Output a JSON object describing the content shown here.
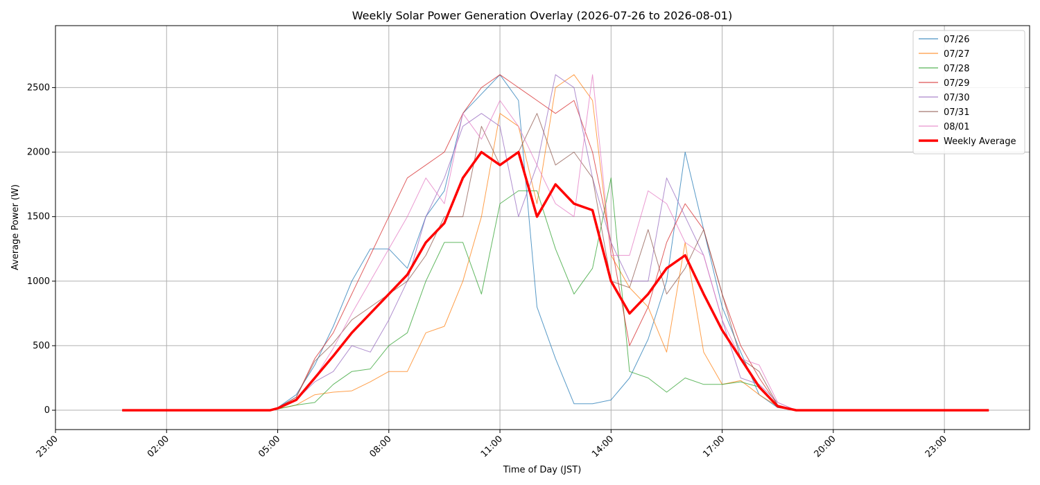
{
  "chart_data": {
    "type": "line",
    "title": "Weekly Solar Power Generation Overlay (2026-07-26 to 2026-08-01)",
    "xlabel": "Time of Day (JST)",
    "ylabel": "Average Power (W)",
    "xlim": [
      -1.0,
      25.3
    ],
    "ylim": [
      -150,
      2980
    ],
    "xticks": [
      -1,
      2,
      5,
      8,
      11,
      14,
      17,
      20,
      23
    ],
    "xtick_labels": [
      "23:00",
      "02:00",
      "05:00",
      "08:00",
      "11:00",
      "14:00",
      "17:00",
      "20:00",
      "23:00"
    ],
    "yticks": [
      0,
      500,
      1000,
      1500,
      2000,
      2500
    ],
    "ytick_labels": [
      "0",
      "500",
      "1000",
      "1500",
      "2000",
      "2500"
    ],
    "grid": true,
    "legend_position": "top-right",
    "x": [
      5.0,
      5.5,
      6.0,
      6.5,
      7.0,
      7.5,
      8.0,
      8.5,
      9.0,
      9.5,
      10.0,
      10.5,
      11.0,
      11.5,
      12.0,
      12.5,
      13.0,
      13.5,
      14.0,
      14.5,
      15.0,
      15.5,
      16.0,
      16.5,
      17.0,
      17.5,
      18.0,
      18.5,
      19.0
    ],
    "series": [
      {
        "name": "07/26",
        "color": "#1f77b4",
        "values": [
          20,
          120,
          350,
          650,
          1000,
          1250,
          1250,
          1100,
          1500,
          1700,
          2300,
          2450,
          2600,
          2400,
          800,
          400,
          50,
          50,
          80,
          250,
          550,
          1000,
          2000,
          1400,
          800,
          450,
          120,
          20,
          0
        ]
      },
      {
        "name": "07/27",
        "color": "#ff7f0e",
        "values": [
          10,
          40,
          120,
          140,
          150,
          220,
          300,
          300,
          600,
          650,
          1000,
          1500,
          2300,
          2200,
          1600,
          2500,
          2600,
          2400,
          1200,
          950,
          800,
          450,
          1300,
          450,
          200,
          230,
          120,
          30,
          0
        ]
      },
      {
        "name": "07/28",
        "color": "#2ca02c",
        "values": [
          10,
          40,
          60,
          200,
          300,
          320,
          500,
          600,
          1000,
          1300,
          1300,
          900,
          1600,
          1700,
          1700,
          1250,
          900,
          1100,
          1800,
          300,
          250,
          140,
          250,
          200,
          200,
          220,
          180,
          30,
          0
        ]
      },
      {
        "name": "07/29",
        "color": "#d62728",
        "values": [
          20,
          100,
          400,
          600,
          900,
          1200,
          1500,
          1800,
          1900,
          2000,
          2300,
          2500,
          2600,
          2500,
          2400,
          2300,
          2400,
          2000,
          1300,
          500,
          800,
          1300,
          1600,
          1400,
          900,
          500,
          250,
          40,
          0
        ]
      },
      {
        "name": "07/30",
        "color": "#9467bd",
        "values": [
          10,
          80,
          220,
          300,
          500,
          450,
          700,
          1000,
          1500,
          1800,
          2200,
          2300,
          2200,
          1500,
          1900,
          2600,
          2500,
          1800,
          1300,
          1000,
          1000,
          1800,
          1500,
          1200,
          700,
          250,
          200,
          60,
          0
        ]
      },
      {
        "name": "07/31",
        "color": "#8c564b",
        "values": [
          20,
          100,
          380,
          520,
          700,
          800,
          900,
          1000,
          1200,
          1500,
          1500,
          2200,
          1900,
          2000,
          2300,
          1900,
          2000,
          1800,
          1000,
          950,
          1400,
          900,
          1100,
          1400,
          900,
          400,
          300,
          40,
          0
        ]
      },
      {
        "name": "08/01",
        "color": "#e377c2",
        "values": [
          10,
          80,
          250,
          480,
          750,
          1000,
          1250,
          1500,
          1800,
          1600,
          2300,
          2100,
          2400,
          2200,
          1900,
          1600,
          1500,
          2600,
          1200,
          1200,
          1700,
          1600,
          1300,
          1200,
          700,
          400,
          350,
          60,
          0
        ]
      },
      {
        "name": "Weekly Average",
        "color": "#ff0000",
        "values": [
          15,
          80,
          250,
          420,
          600,
          750,
          900,
          1050,
          1300,
          1450,
          1800,
          2000,
          1900,
          2000,
          1500,
          1750,
          1600,
          1550,
          1000,
          750,
          900,
          1100,
          1200,
          900,
          620,
          400,
          180,
          30,
          0
        ]
      }
    ]
  }
}
